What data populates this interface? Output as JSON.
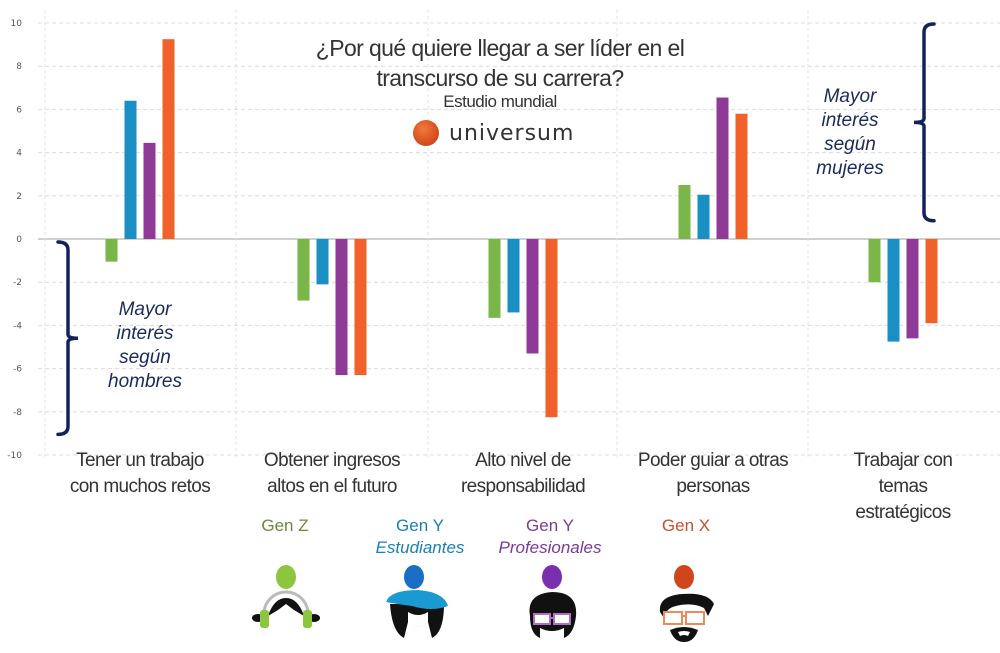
{
  "chart_data": {
    "type": "bar",
    "title": "¿Por qué quiere llegar a ser líder en el transcurso de su carrera?",
    "subtitle": "Estudio mundial",
    "brand": "universum",
    "xlabel": "",
    "ylabel": "",
    "ylim": [
      -10,
      10
    ],
    "yticks": [
      10,
      8,
      6,
      4,
      2,
      0,
      -2,
      -4,
      -6,
      -8,
      -10
    ],
    "grid": true,
    "categories": [
      [
        "Tener un trabajo",
        "con muchos retos"
      ],
      [
        "Obtener ingresos",
        "altos en el futuro"
      ],
      [
        "Alto nivel de",
        "responsabilidad"
      ],
      [
        "Poder guiar a otras",
        "personas"
      ],
      [
        "Trabajar con",
        "temas",
        "estratégicos"
      ]
    ],
    "series": [
      {
        "name": "Gen Z",
        "sub": "",
        "color": "#7ab648",
        "values": [
          -1.05,
          -2.85,
          -3.65,
          2.5,
          -2.0
        ]
      },
      {
        "name": "Gen Y",
        "sub": "Estudiantes",
        "color": "#1a8fc4",
        "values": [
          6.4,
          -2.1,
          -3.4,
          2.05,
          -4.75
        ]
      },
      {
        "name": "Gen Y",
        "sub": "Profesionales",
        "color": "#8e3a96",
        "values": [
          4.45,
          -6.3,
          -5.3,
          6.55,
          -4.6
        ]
      },
      {
        "name": "Gen X",
        "sub": "",
        "color": "#f0622a",
        "values": [
          9.25,
          -6.3,
          -8.25,
          5.8,
          -3.9
        ]
      }
    ],
    "legend_placement": "bottom",
    "annotations": [
      {
        "id": "women",
        "lines": [
          "Mayor",
          "interés",
          "según",
          "mujeres"
        ],
        "range": [
          0.8,
          10
        ]
      },
      {
        "id": "men",
        "lines": [
          "Mayor",
          "interés",
          "según",
          "hombres"
        ],
        "range": [
          -9,
          0
        ]
      }
    ]
  },
  "legend_colors": {
    "genz_text": "#6b8a3a",
    "geny_est_text": "#1a7fb8",
    "geny_prof_text": "#7a3a9a",
    "genx_text": "#c8502a"
  }
}
